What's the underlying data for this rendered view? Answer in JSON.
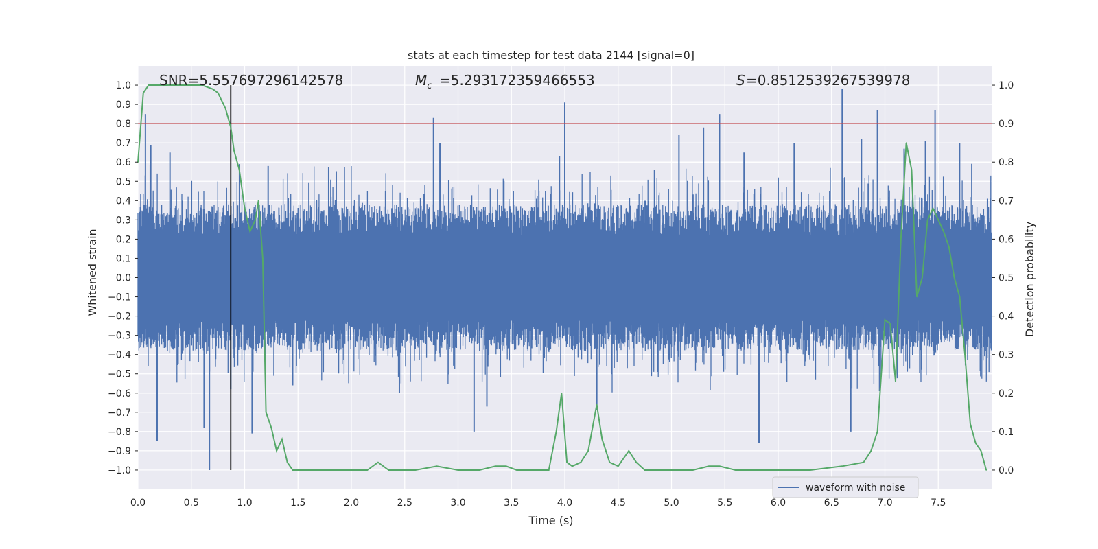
{
  "chart_data": {
    "type": "line",
    "title": "stats at each timestep for test data 2144 [signal=0]",
    "xlabel": "Time (s)",
    "ylabel": "Whitened strain",
    "y2label": "Detection probability",
    "xlim": [
      0.0,
      8.0
    ],
    "ylim": [
      -1.1,
      1.1
    ],
    "y2lim": [
      -0.05,
      1.05
    ],
    "xticks": [
      "0.0",
      "0.5",
      "1.0",
      "1.5",
      "2.0",
      "2.5",
      "3.0",
      "3.5",
      "4.0",
      "4.5",
      "5.0",
      "5.5",
      "6.0",
      "6.5",
      "7.0",
      "7.5"
    ],
    "yticks": [
      "1.0",
      "0.9",
      "0.8",
      "0.7",
      "0.6",
      "0.5",
      "0.4",
      "0.3",
      "0.2",
      "0.1",
      "0.0",
      "−0.1",
      "−0.2",
      "−0.3",
      "−0.4",
      "−0.5",
      "−0.6",
      "−0.7",
      "−0.8",
      "−0.9",
      "−1.0"
    ],
    "y2ticks": [
      "1.0",
      "0.9",
      "0.8",
      "0.7",
      "0.6",
      "0.5",
      "0.4",
      "0.3",
      "0.2",
      "0.1",
      "0.0"
    ],
    "annotations": {
      "snr": "SNR=5.557697296142578",
      "mc": "=5.293172359466553",
      "s": "=0.8512539267539978"
    },
    "threshold_prob": 0.9,
    "marker_time": 0.87,
    "legend": {
      "label": "waveform with noise",
      "placement": "lower-right"
    },
    "waveform": {
      "name": "waveform with noise",
      "envelope_upper": 0.38,
      "envelope_lower": -0.38,
      "dense_band": 0.22,
      "spikes": [
        {
          "t": 0.07,
          "v": 0.85
        },
        {
          "t": 0.12,
          "v": 0.69
        },
        {
          "t": 0.3,
          "v": 0.65
        },
        {
          "t": 0.18,
          "v": -0.85
        },
        {
          "t": 0.67,
          "v": -1.0
        },
        {
          "t": 0.62,
          "v": -0.78
        },
        {
          "t": 0.87,
          "v": -0.58
        },
        {
          "t": 1.07,
          "v": -0.81
        },
        {
          "t": 1.22,
          "v": 0.58
        },
        {
          "t": 2.77,
          "v": 0.83
        },
        {
          "t": 2.83,
          "v": 0.7
        },
        {
          "t": 3.15,
          "v": -0.8
        },
        {
          "t": 3.95,
          "v": 0.63
        },
        {
          "t": 4.0,
          "v": 0.91
        },
        {
          "t": 4.3,
          "v": -0.69
        },
        {
          "t": 5.07,
          "v": 0.74
        },
        {
          "t": 5.3,
          "v": 0.78
        },
        {
          "t": 5.45,
          "v": 0.85
        },
        {
          "t": 5.68,
          "v": 0.65
        },
        {
          "t": 5.82,
          "v": -0.86
        },
        {
          "t": 6.15,
          "v": 0.7
        },
        {
          "t": 6.6,
          "v": 0.98
        },
        {
          "t": 6.78,
          "v": 0.72
        },
        {
          "t": 6.93,
          "v": 0.87
        },
        {
          "t": 7.18,
          "v": 0.67
        },
        {
          "t": 7.38,
          "v": 0.71
        },
        {
          "t": 7.47,
          "v": 0.87
        },
        {
          "t": 7.7,
          "v": 0.7
        },
        {
          "t": 6.95,
          "v": -0.59
        },
        {
          "t": 6.68,
          "v": -0.8
        },
        {
          "t": 1.45,
          "v": -0.56
        },
        {
          "t": 2.45,
          "v": -0.6
        },
        {
          "t": 3.27,
          "v": -0.67
        }
      ]
    },
    "probability": {
      "name": "detection probability",
      "x": [
        0.0,
        0.05,
        0.1,
        0.2,
        0.3,
        0.4,
        0.5,
        0.6,
        0.7,
        0.75,
        0.82,
        0.87,
        0.9,
        0.95,
        1.0,
        1.05,
        1.1,
        1.13,
        1.17,
        1.2,
        1.25,
        1.3,
        1.35,
        1.4,
        1.45,
        1.5,
        1.6,
        1.8,
        2.0,
        2.15,
        2.25,
        2.35,
        2.45,
        2.6,
        2.8,
        3.0,
        3.2,
        3.35,
        3.45,
        3.55,
        3.7,
        3.85,
        3.92,
        3.97,
        4.02,
        4.07,
        4.15,
        4.22,
        4.3,
        4.35,
        4.42,
        4.5,
        4.6,
        4.67,
        4.75,
        4.85,
        5.0,
        5.2,
        5.35,
        5.45,
        5.6,
        5.8,
        6.0,
        6.3,
        6.6,
        6.8,
        6.87,
        6.93,
        7.0,
        7.05,
        7.1,
        7.15,
        7.2,
        7.25,
        7.3,
        7.35,
        7.4,
        7.45,
        7.5,
        7.55,
        7.6,
        7.65,
        7.7,
        7.75,
        7.8,
        7.85,
        7.9,
        7.95
      ],
      "y": [
        0.8,
        0.98,
        1.0,
        1.0,
        1.0,
        1.0,
        1.0,
        1.0,
        0.99,
        0.98,
        0.94,
        0.89,
        0.83,
        0.78,
        0.68,
        0.62,
        0.65,
        0.7,
        0.55,
        0.15,
        0.11,
        0.05,
        0.08,
        0.02,
        0.0,
        0.0,
        0.0,
        0.0,
        0.0,
        0.0,
        0.02,
        0.0,
        0.0,
        0.0,
        0.01,
        0.0,
        0.0,
        0.01,
        0.01,
        0.0,
        0.0,
        0.0,
        0.1,
        0.2,
        0.02,
        0.01,
        0.02,
        0.05,
        0.17,
        0.08,
        0.02,
        0.01,
        0.05,
        0.02,
        0.0,
        0.0,
        0.0,
        0.0,
        0.01,
        0.01,
        0.0,
        0.0,
        0.0,
        0.0,
        0.01,
        0.02,
        0.05,
        0.1,
        0.39,
        0.38,
        0.23,
        0.6,
        0.85,
        0.78,
        0.45,
        0.5,
        0.65,
        0.68,
        0.65,
        0.62,
        0.58,
        0.5,
        0.45,
        0.3,
        0.12,
        0.07,
        0.05,
        0.0
      ]
    }
  }
}
